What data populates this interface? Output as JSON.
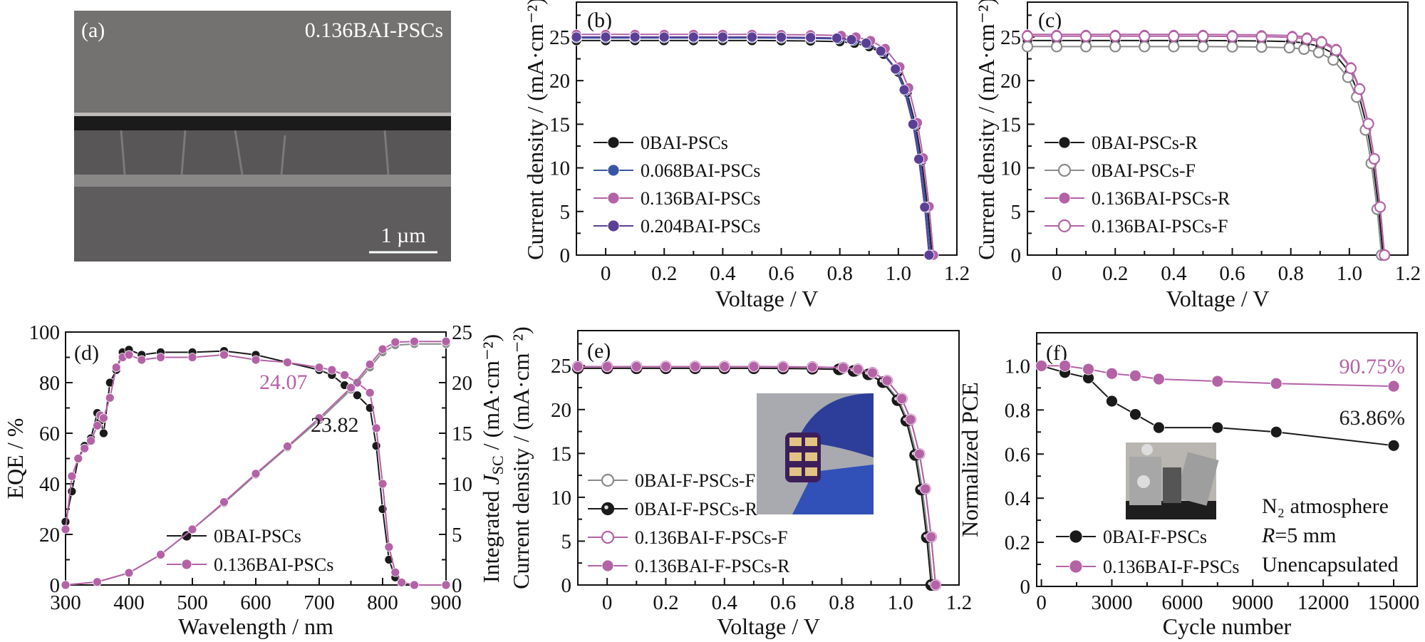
{
  "panel_a": {
    "label": "(a)",
    "sample": "0.136BAI-PSCs",
    "scale_bar": "1 µm"
  },
  "chart_data": [
    {
      "panel": "(b)",
      "type": "line",
      "xlabel": "Voltage / V",
      "ylabel": "Current density / (mA·cm⁻²)",
      "xlim": [
        -0.1,
        1.2
      ],
      "ylim": [
        0,
        29
      ],
      "xticks": [
        0,
        0.2,
        0.4,
        0.6,
        0.8,
        1.0,
        1.2
      ],
      "xtick_labels": [
        "0",
        "0.2",
        "0.4",
        "0.6",
        "0.8",
        "1.0",
        "1.2"
      ],
      "yticks": [
        0,
        5,
        10,
        15,
        20,
        25
      ],
      "ytick_labels": [
        "0",
        "5",
        "10",
        "15",
        "20",
        "25"
      ],
      "legend_position": "lower-left",
      "series": [
        {
          "name": "0BAI-PSCs",
          "color": "#1a1a1a",
          "marker": "filled",
          "x": [
            -0.1,
            0,
            0.1,
            0.2,
            0.3,
            0.4,
            0.5,
            0.6,
            0.7,
            0.8,
            0.85,
            0.9,
            0.95,
            1.0,
            1.03,
            1.06,
            1.08,
            1.1,
            1.115
          ],
          "y": [
            24.6,
            24.6,
            24.6,
            24.6,
            24.6,
            24.6,
            24.6,
            24.58,
            24.55,
            24.48,
            24.3,
            23.91,
            23.03,
            20.98,
            18.65,
            14.76,
            10.82,
            5.41,
            0
          ]
        },
        {
          "name": "0.068BAI-PSCs",
          "color": "#3b55a6",
          "marker": "filled",
          "x": [
            -0.1,
            0,
            0.1,
            0.2,
            0.3,
            0.4,
            0.5,
            0.6,
            0.7,
            0.795,
            0.845,
            0.895,
            0.945,
            0.995,
            1.025,
            1.055,
            1.075,
            1.095,
            1.11
          ],
          "y": [
            24.9,
            24.9,
            24.9,
            24.9,
            24.9,
            24.9,
            24.9,
            24.88,
            24.85,
            24.78,
            24.6,
            24.2,
            23.31,
            21.24,
            18.87,
            14.94,
            10.96,
            5.48,
            0
          ]
        },
        {
          "name": "0.136BAI-PSCs",
          "color": "#b462a6",
          "marker": "filled",
          "x": [
            -0.1,
            0,
            0.1,
            0.2,
            0.3,
            0.4,
            0.5,
            0.6,
            0.7,
            0.805,
            0.855,
            0.905,
            0.955,
            1.005,
            1.035,
            1.065,
            1.085,
            1.105,
            1.12
          ],
          "y": [
            25.3,
            25.3,
            25.3,
            25.3,
            25.3,
            25.3,
            25.3,
            25.27,
            25.25,
            25.17,
            25.0,
            24.59,
            23.68,
            21.58,
            19.18,
            15.18,
            11.13,
            5.57,
            0
          ]
        },
        {
          "name": "0.204BAI-PSCs",
          "color": "#5b3f97",
          "marker": "filled",
          "x": [
            -0.1,
            0,
            0.1,
            0.2,
            0.3,
            0.4,
            0.5,
            0.6,
            0.7,
            0.79,
            0.84,
            0.89,
            0.94,
            0.99,
            1.02,
            1.05,
            1.07,
            1.09,
            1.105
          ],
          "y": [
            25.0,
            25.0,
            25.0,
            25.0,
            25.0,
            25.0,
            25.0,
            24.98,
            24.95,
            24.88,
            24.7,
            24.3,
            23.4,
            21.33,
            18.95,
            15.0,
            11.0,
            5.5,
            0
          ]
        }
      ]
    },
    {
      "panel": "(c)",
      "type": "line",
      "xlabel": "Voltage / V",
      "ylabel": "Current density / (mA·cm⁻²)",
      "xlim": [
        -0.1,
        1.2
      ],
      "ylim": [
        0,
        29
      ],
      "xticks": [
        0,
        0.2,
        0.4,
        0.6,
        0.8,
        1.0,
        1.2
      ],
      "xtick_labels": [
        "0",
        "0.2",
        "0.4",
        "0.6",
        "0.8",
        "1.0",
        "1.2"
      ],
      "yticks": [
        0,
        5,
        10,
        15,
        20,
        25
      ],
      "ytick_labels": [
        "0",
        "5",
        "10",
        "15",
        "20",
        "25"
      ],
      "legend_position": "lower-left",
      "series": [
        {
          "name": "0BAI-PSCs-R",
          "color": "#1a1a1a",
          "marker": "filled",
          "x": [
            -0.1,
            0,
            0.1,
            0.2,
            0.3,
            0.4,
            0.5,
            0.6,
            0.7,
            0.8,
            0.85,
            0.9,
            0.95,
            1.0,
            1.03,
            1.06,
            1.08,
            1.1,
            1.115
          ],
          "y": [
            24.6,
            24.6,
            24.6,
            24.6,
            24.6,
            24.6,
            24.6,
            24.58,
            24.55,
            24.48,
            24.3,
            23.91,
            23.03,
            20.98,
            18.65,
            14.76,
            10.82,
            5.41,
            0
          ]
        },
        {
          "name": "0BAI-PSCs-F",
          "color": "#8a8a8a",
          "marker": "open",
          "x": [
            -0.1,
            0,
            0.1,
            0.2,
            0.3,
            0.4,
            0.5,
            0.6,
            0.7,
            0.795,
            0.845,
            0.895,
            0.945,
            0.995,
            1.025,
            1.055,
            1.075,
            1.095,
            1.11
          ],
          "y": [
            23.9,
            23.9,
            23.9,
            23.9,
            23.9,
            23.9,
            23.9,
            23.88,
            23.85,
            23.78,
            23.61,
            23.23,
            22.37,
            20.39,
            18.12,
            14.34,
            10.52,
            5.26,
            0
          ]
        },
        {
          "name": "0.136BAI-PSCs-R",
          "color": "#b462a6",
          "marker": "filled",
          "x": [
            -0.1,
            0,
            0.1,
            0.2,
            0.3,
            0.4,
            0.5,
            0.6,
            0.7,
            0.805,
            0.855,
            0.905,
            0.955,
            1.005,
            1.035,
            1.065,
            1.085,
            1.105,
            1.12
          ],
          "y": [
            25.3,
            25.3,
            25.3,
            25.3,
            25.3,
            25.3,
            25.3,
            25.27,
            25.25,
            25.17,
            25.0,
            24.59,
            23.68,
            21.58,
            19.18,
            15.18,
            11.13,
            5.57,
            0
          ]
        },
        {
          "name": "0.136BAI-PSCs-F",
          "color": "#b462a6",
          "marker": "open",
          "x": [
            -0.1,
            0,
            0.1,
            0.2,
            0.3,
            0.4,
            0.5,
            0.6,
            0.7,
            0.805,
            0.855,
            0.905,
            0.955,
            1.005,
            1.035,
            1.065,
            1.085,
            1.105,
            1.12
          ],
          "y": [
            25.1,
            25.1,
            25.1,
            25.1,
            25.1,
            25.1,
            25.1,
            25.07,
            25.05,
            24.97,
            24.8,
            24.4,
            23.49,
            21.41,
            19.03,
            15.06,
            11.04,
            5.52,
            0
          ]
        }
      ]
    },
    {
      "panel": "(d)",
      "type": "line",
      "xlabel": "Wavelength / nm",
      "ylabel": "EQE / %",
      "y2label": {
        "prefix": "Integrated ",
        "symbol": "J",
        "subscript": "SC",
        "suffix": " / (mA·cm⁻²)"
      },
      "xlim": [
        300,
        900
      ],
      "ylim": [
        0,
        100
      ],
      "y2lim": [
        0,
        25
      ],
      "xticks": [
        300,
        400,
        500,
        600,
        700,
        800,
        900
      ],
      "xtick_labels": [
        "300",
        "400",
        "500",
        "600",
        "700",
        "800",
        "900"
      ],
      "yticks": [
        0,
        20,
        40,
        60,
        80,
        100
      ],
      "ytick_labels": [
        "0",
        "20",
        "40",
        "60",
        "80",
        "100"
      ],
      "y2ticks": [
        0,
        5,
        10,
        15,
        20,
        25
      ],
      "y2tick_labels": [
        "0",
        "5",
        "10",
        "15",
        "20",
        "25"
      ],
      "legend_position": "lower-center",
      "series": [
        {
          "name": "0BAI-PSCs",
          "color": "#1a1a1a",
          "marker": "filled",
          "axis": "left",
          "x": [
            300,
            310,
            320,
            330,
            340,
            350,
            355,
            360,
            370,
            380,
            390,
            400,
            420,
            450,
            500,
            550,
            600,
            650,
            700,
            720,
            740,
            760,
            780,
            790,
            800,
            810,
            820,
            830,
            850,
            900
          ],
          "y": [
            25,
            37,
            50,
            55,
            58,
            68,
            65,
            60,
            80,
            85,
            92,
            93,
            91,
            92,
            92,
            92.5,
            91,
            88,
            85,
            83,
            79,
            75,
            70,
            55,
            30,
            10,
            3,
            1,
            0,
            0
          ]
        },
        {
          "name": "0.136BAI-PSCs",
          "color": "#b462a6",
          "marker": "filled",
          "axis": "left",
          "x": [
            300,
            310,
            320,
            330,
            340,
            350,
            355,
            360,
            370,
            380,
            390,
            400,
            420,
            450,
            500,
            550,
            600,
            650,
            700,
            720,
            740,
            760,
            780,
            790,
            800,
            810,
            820,
            830,
            850,
            900
          ],
          "y": [
            22,
            43,
            50,
            54,
            57,
            63,
            67,
            66,
            74,
            86,
            90,
            91,
            89,
            90,
            90,
            91,
            89,
            88,
            86,
            85,
            83,
            80,
            76,
            62,
            40,
            15,
            5,
            1,
            0,
            0
          ]
        },
        {
          "color": "#8a8a8a",
          "marker": "filled",
          "axis": "right",
          "x": [
            300,
            350,
            400,
            450,
            500,
            550,
            600,
            650,
            700,
            750,
            780,
            800,
            820,
            850,
            900
          ],
          "y": [
            0,
            0.3,
            1.2,
            3.0,
            5.5,
            8.1,
            10.9,
            13.6,
            16.3,
            19.3,
            21.5,
            23.0,
            23.7,
            23.82,
            23.82
          ]
        },
        {
          "color": "#b462a6",
          "marker": "filled",
          "axis": "right",
          "x": [
            300,
            350,
            400,
            450,
            500,
            550,
            600,
            650,
            700,
            750,
            780,
            800,
            820,
            850,
            900
          ],
          "y": [
            0,
            0.3,
            1.2,
            3.0,
            5.5,
            8.2,
            11.0,
            13.7,
            16.5,
            19.5,
            21.8,
            23.3,
            24.0,
            24.07,
            24.07
          ]
        }
      ],
      "annotations": [
        {
          "text": "24.07",
          "color": "#b462a6"
        },
        {
          "text": "23.82",
          "color": "#1a1a1a"
        }
      ]
    },
    {
      "panel": "(e)",
      "type": "line",
      "xlabel": "Voltage / V",
      "ylabel": "Current density / (mA·cm⁻²)",
      "xlim": [
        -0.1,
        1.2
      ],
      "ylim": [
        0,
        29
      ],
      "xticks": [
        0,
        0.2,
        0.4,
        0.6,
        0.8,
        1.0,
        1.2
      ],
      "xtick_labels": [
        "0",
        "0.2",
        "0.4",
        "0.6",
        "0.8",
        "1.0",
        "1.2"
      ],
      "yticks": [
        0,
        5,
        10,
        15,
        20,
        25
      ],
      "ytick_labels": [
        "0",
        "5",
        "10",
        "15",
        "20",
        "25"
      ],
      "legend_position": "lower-left",
      "inset": "photo of bent flexible device",
      "series": [
        {
          "name": "0BAI-F-PSCs-F",
          "color": "#8a8a8a",
          "marker": "open",
          "x": [
            -0.1,
            0,
            0.1,
            0.2,
            0.3,
            0.4,
            0.5,
            0.6,
            0.7,
            0.795,
            0.845,
            0.895,
            0.945,
            0.995,
            1.025,
            1.055,
            1.075,
            1.095,
            1.11
          ],
          "y": [
            24.7,
            24.7,
            24.7,
            24.7,
            24.7,
            24.7,
            24.7,
            24.68,
            24.65,
            24.58,
            24.4,
            24.01,
            23.12,
            21.07,
            18.72,
            14.82,
            10.87,
            5.43,
            0
          ]
        },
        {
          "name": "0BAI-F-PSCs-R",
          "color": "#1a1a1a",
          "marker": "half",
          "x": [
            -0.1,
            0,
            0.1,
            0.2,
            0.3,
            0.4,
            0.5,
            0.6,
            0.7,
            0.79,
            0.84,
            0.89,
            0.94,
            0.99,
            1.02,
            1.05,
            1.07,
            1.09,
            1.105
          ],
          "y": [
            24.7,
            24.7,
            24.7,
            24.7,
            24.7,
            24.7,
            24.7,
            24.68,
            24.65,
            24.58,
            24.4,
            24.01,
            23.12,
            21.07,
            18.72,
            14.82,
            10.87,
            5.43,
            0
          ]
        },
        {
          "name": "0.136BAI-F-PSCs-F",
          "color": "#b462a6",
          "marker": "open",
          "x": [
            -0.1,
            0,
            0.1,
            0.2,
            0.3,
            0.4,
            0.5,
            0.6,
            0.7,
            0.805,
            0.855,
            0.905,
            0.955,
            1.005,
            1.035,
            1.065,
            1.085,
            1.105,
            1.12
          ],
          "y": [
            24.9,
            24.9,
            24.9,
            24.9,
            24.9,
            24.9,
            24.9,
            24.88,
            24.85,
            24.78,
            24.6,
            24.2,
            23.31,
            21.24,
            18.87,
            14.94,
            10.96,
            5.48,
            0
          ]
        },
        {
          "name": "0.136BAI-F-PSCs-R",
          "color": "#b462a6",
          "marker": "filled",
          "x": [
            -0.1,
            0,
            0.1,
            0.2,
            0.3,
            0.4,
            0.5,
            0.6,
            0.7,
            0.805,
            0.855,
            0.905,
            0.955,
            1.005,
            1.035,
            1.065,
            1.085,
            1.105,
            1.12
          ],
          "y": [
            24.9,
            24.9,
            24.9,
            24.9,
            24.9,
            24.9,
            24.9,
            24.88,
            24.85,
            24.78,
            24.6,
            24.2,
            23.31,
            21.24,
            18.87,
            14.94,
            10.96,
            5.48,
            0
          ]
        }
      ]
    },
    {
      "panel": "(f)",
      "type": "line",
      "xlabel": "Cycle number",
      "ylabel": "Normalized PCE",
      "xlim": [
        -200,
        16000
      ],
      "ylim": [
        0,
        1.15
      ],
      "xticks": [
        0,
        3000,
        6000,
        9000,
        12000,
        15000
      ],
      "xtick_labels": [
        "0",
        "3000",
        "6000",
        "9000",
        "12000",
        "15000"
      ],
      "yticks": [
        0,
        0.2,
        0.4,
        0.6,
        0.8,
        1.0
      ],
      "ytick_labels": [
        "0",
        "0.2",
        "0.4",
        "0.6",
        "0.8",
        "1.0"
      ],
      "legend_position": "lower-left",
      "inset": "photo of bending test fixture",
      "series": [
        {
          "name": "0BAI-F-PSCs",
          "color": "#1a1a1a",
          "marker": "filled",
          "x": [
            0,
            1000,
            2000,
            3000,
            4000,
            5000,
            7500,
            10000,
            15000
          ],
          "y": [
            1.0,
            0.97,
            0.945,
            0.84,
            0.78,
            0.72,
            0.72,
            0.7,
            0.6386
          ]
        },
        {
          "name": "0.136BAI-F-PSCs",
          "color": "#b462a6",
          "marker": "filled",
          "x": [
            0,
            1000,
            2000,
            3000,
            4000,
            5000,
            7500,
            10000,
            15000
          ],
          "y": [
            1.0,
            1.0,
            0.985,
            0.965,
            0.955,
            0.94,
            0.93,
            0.92,
            0.9075
          ]
        }
      ],
      "annotations": [
        {
          "text": "90.75%",
          "color": "#b462a6"
        },
        {
          "text": "63.86%",
          "color": "#1a1a1a"
        }
      ],
      "conditions": {
        "line1": "N₂ atmosphere",
        "line2_symbol": "R",
        "line2_rest": "=5 mm",
        "line3": "Unencapsulated"
      }
    }
  ]
}
